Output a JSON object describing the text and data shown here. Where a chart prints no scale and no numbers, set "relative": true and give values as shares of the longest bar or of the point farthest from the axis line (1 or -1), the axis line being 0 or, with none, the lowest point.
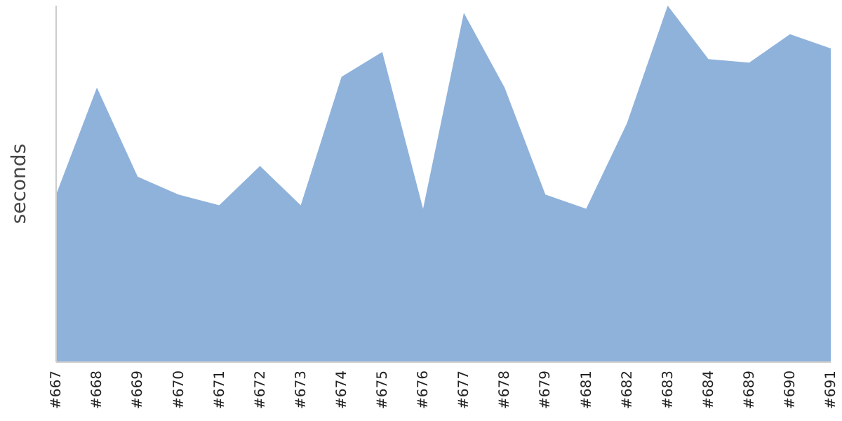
{
  "chart_data": {
    "type": "area",
    "ylabel": "seconds",
    "relative": true,
    "categories": [
      "#667",
      "#668",
      "#669",
      "#670",
      "#671",
      "#672",
      "#673",
      "#674",
      "#675",
      "#676",
      "#677",
      "#678",
      "#679",
      "#681",
      "#682",
      "#683",
      "#684",
      "#689",
      "#690",
      "#691"
    ],
    "series": [
      {
        "color": "#8fb2db",
        "values": [
          0.47,
          0.77,
          0.52,
          0.47,
          0.44,
          0.55,
          0.44,
          0.8,
          0.87,
          0.43,
          0.98,
          0.77,
          0.47,
          0.43,
          0.67,
          1,
          0.85,
          0.84,
          0.92,
          0.88
        ]
      }
    ],
    "grid": false,
    "legend": false
  }
}
